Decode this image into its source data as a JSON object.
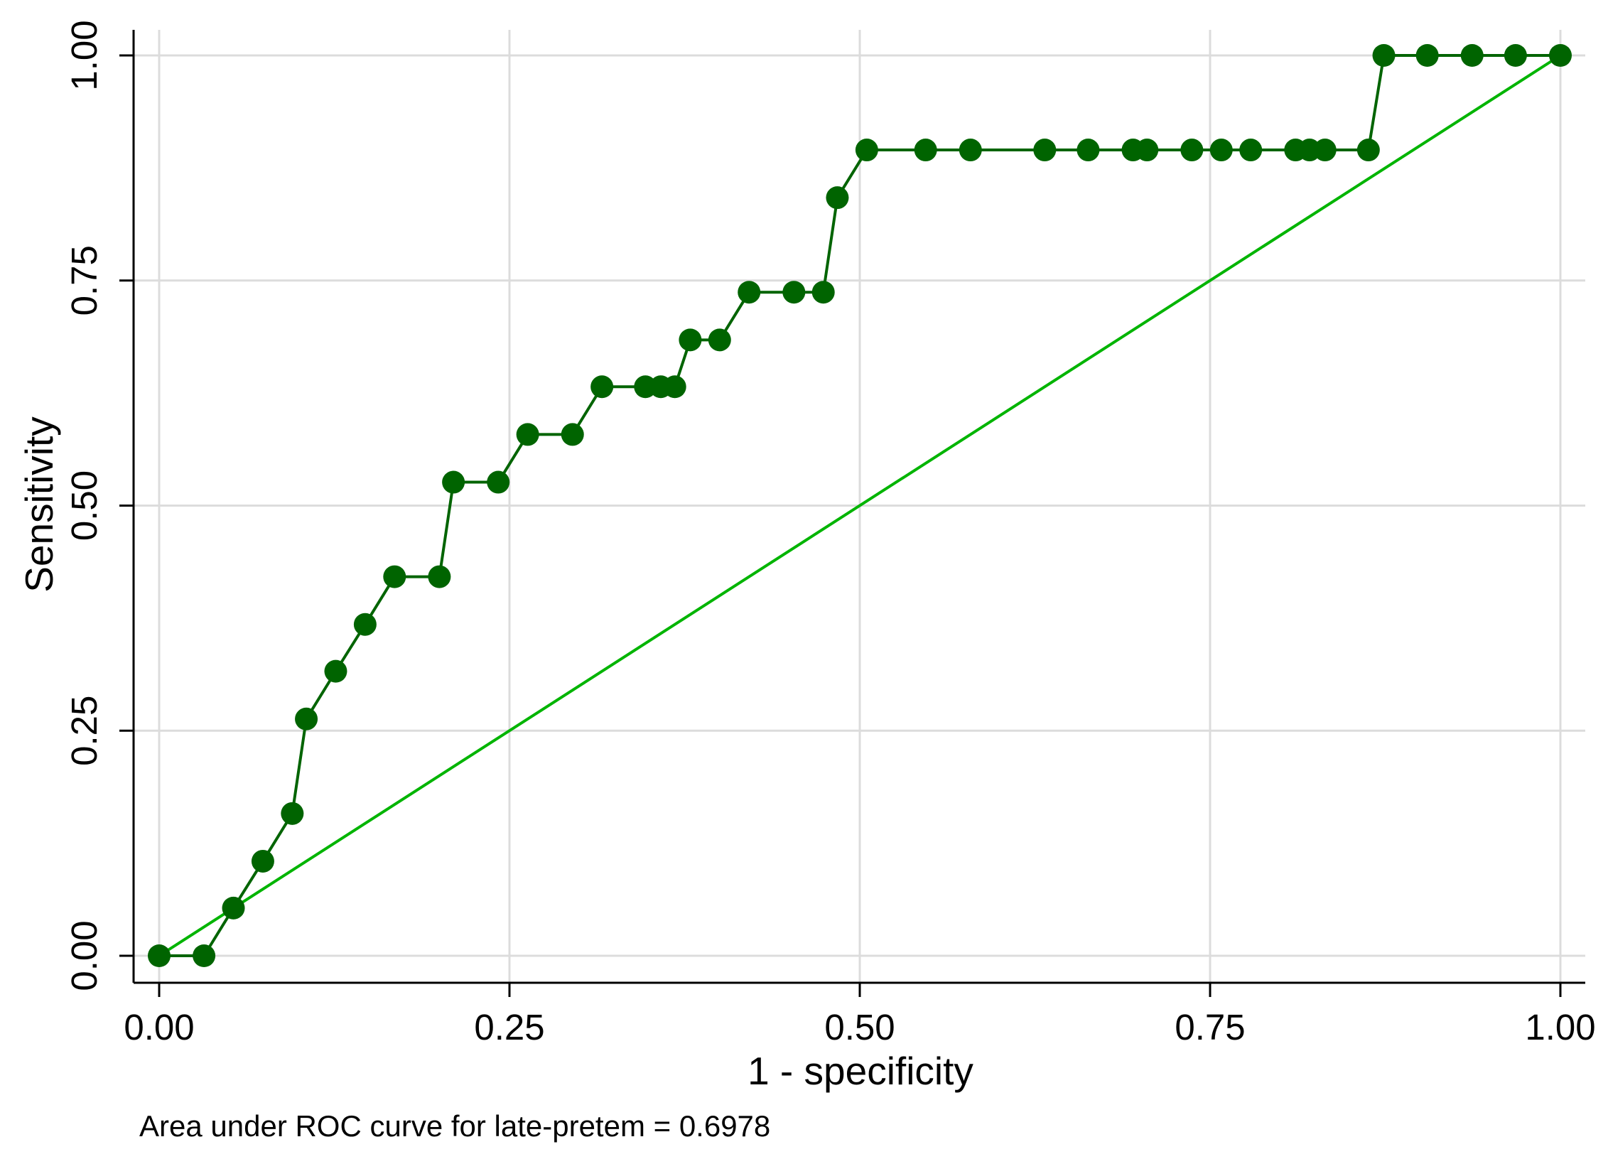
{
  "chart_data": {
    "type": "line",
    "title": "",
    "xlabel": "1 - specificity",
    "ylabel": "Sensitivity",
    "xlim": [
      0,
      1
    ],
    "ylim": [
      0,
      1
    ],
    "x_ticks": [
      "0.00",
      "0.25",
      "0.50",
      "0.75",
      "1.00"
    ],
    "y_ticks": [
      "0.00",
      "0.25",
      "0.50",
      "0.75",
      "1.00"
    ],
    "grid": true,
    "legend": "none",
    "note": "Area under ROC curve for late-pretem = 0.6978",
    "colors": {
      "roc_line": "#006400",
      "roc_marker": "#006400",
      "reference_line": "#00b400",
      "grid": "#dcdcdc",
      "axis": "#000000"
    },
    "series": [
      {
        "role": "roc-curve",
        "points": [
          [
            0.0,
            0.0
          ],
          [
            0.032,
            0.0
          ],
          [
            0.053,
            0.053
          ],
          [
            0.074,
            0.105
          ],
          [
            0.095,
            0.158
          ],
          [
            0.105,
            0.263
          ],
          [
            0.126,
            0.316
          ],
          [
            0.147,
            0.368
          ],
          [
            0.168,
            0.421
          ],
          [
            0.2,
            0.421
          ],
          [
            0.21,
            0.526
          ],
          [
            0.242,
            0.526
          ],
          [
            0.263,
            0.579
          ],
          [
            0.295,
            0.579
          ],
          [
            0.316,
            0.632
          ],
          [
            0.347,
            0.632
          ],
          [
            0.358,
            0.632
          ],
          [
            0.368,
            0.632
          ],
          [
            0.379,
            0.684
          ],
          [
            0.4,
            0.684
          ],
          [
            0.421,
            0.737
          ],
          [
            0.453,
            0.737
          ],
          [
            0.474,
            0.737
          ],
          [
            0.484,
            0.842
          ],
          [
            0.505,
            0.895
          ],
          [
            0.547,
            0.895
          ],
          [
            0.579,
            0.895
          ],
          [
            0.632,
            0.895
          ],
          [
            0.663,
            0.895
          ],
          [
            0.695,
            0.895
          ],
          [
            0.705,
            0.895
          ],
          [
            0.737,
            0.895
          ],
          [
            0.758,
            0.895
          ],
          [
            0.779,
            0.895
          ],
          [
            0.811,
            0.895
          ],
          [
            0.821,
            0.895
          ],
          [
            0.832,
            0.895
          ],
          [
            0.863,
            0.895
          ],
          [
            0.874,
            1.0
          ],
          [
            0.905,
            1.0
          ],
          [
            0.937,
            1.0
          ],
          [
            0.968,
            1.0
          ],
          [
            1.0,
            1.0
          ]
        ]
      },
      {
        "role": "reference-line",
        "points": [
          [
            0,
            0
          ],
          [
            1,
            1
          ]
        ]
      }
    ]
  }
}
